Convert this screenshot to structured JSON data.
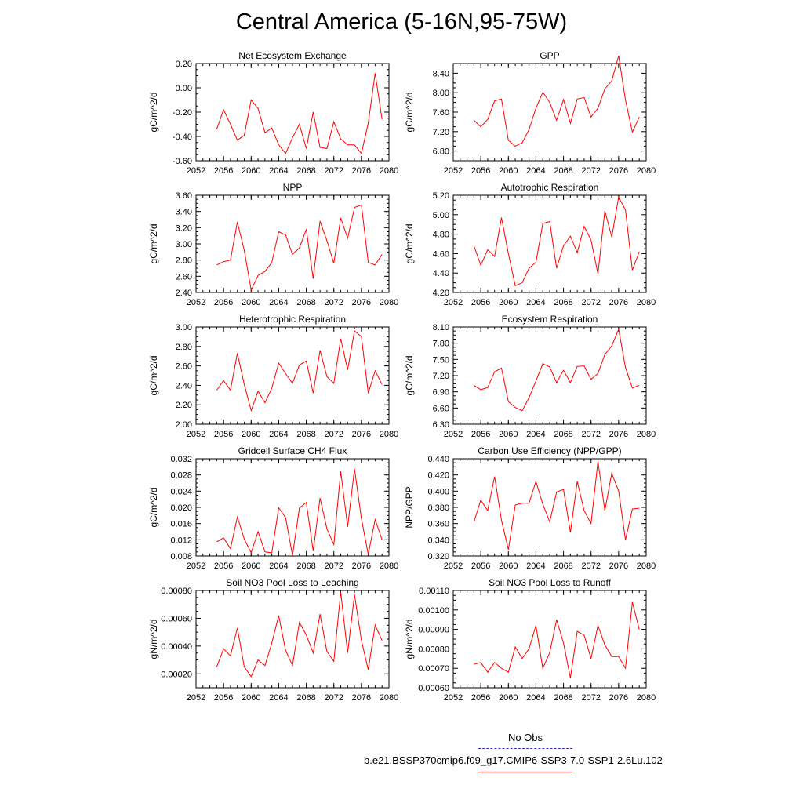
{
  "title": "Central America (5-16N,95-75W)",
  "legend": {
    "no_obs_label": "No Obs",
    "no_obs_color": "#3333cc",
    "run_label": "b.e21.BSSP370cmip6.f09_g17.CMIP6-SSP3-7.0-SSP1-2.6Lu.102",
    "run_color": "#ff0000"
  },
  "chart_data": [
    {
      "type": "line",
      "title": "Net Ecosystem Exchange",
      "ylabel": "gC/m^2/d",
      "xlim": [
        2052,
        2080
      ],
      "xticks": [
        "2052",
        "2056",
        "2060",
        "2064",
        "2068",
        "2072",
        "2076",
        "2080"
      ],
      "ylim": [
        -0.6,
        0.2
      ],
      "yticks": [
        "-0.60",
        "-0.40",
        "-0.20",
        "0.00",
        "0.20"
      ],
      "x": [
        2055,
        2056,
        2057,
        2058,
        2059,
        2060,
        2061,
        2062,
        2063,
        2064,
        2065,
        2066,
        2067,
        2068,
        2069,
        2070,
        2071,
        2072,
        2073,
        2074,
        2075,
        2076,
        2077,
        2078,
        2079
      ],
      "values": [
        -0.34,
        -0.18,
        -0.3,
        -0.43,
        -0.39,
        -0.1,
        -0.17,
        -0.37,
        -0.33,
        -0.47,
        -0.54,
        -0.41,
        -0.3,
        -0.5,
        -0.2,
        -0.49,
        -0.5,
        -0.28,
        -0.42,
        -0.47,
        -0.47,
        -0.54,
        -0.29,
        0.12,
        -0.26
      ]
    },
    {
      "type": "line",
      "title": "GPP",
      "ylabel": "gC/m^2/d",
      "xlim": [
        2052,
        2080
      ],
      "xticks": [
        "2052",
        "2056",
        "2060",
        "2064",
        "2068",
        "2072",
        "2076",
        "2080"
      ],
      "ylim": [
        6.6,
        8.6
      ],
      "yticks": [
        "6.80",
        "7.20",
        "7.60",
        "8.00",
        "8.40"
      ],
      "x": [
        2055,
        2056,
        2057,
        2058,
        2059,
        2060,
        2061,
        2062,
        2063,
        2064,
        2065,
        2066,
        2067,
        2068,
        2069,
        2070,
        2071,
        2072,
        2073,
        2074,
        2075,
        2076,
        2077,
        2078,
        2079
      ],
      "values": [
        7.43,
        7.3,
        7.45,
        7.83,
        7.87,
        7.02,
        6.9,
        6.97,
        7.24,
        7.68,
        8.01,
        7.8,
        7.43,
        7.86,
        7.37,
        7.87,
        7.9,
        7.5,
        7.68,
        8.08,
        8.24,
        8.76,
        7.85,
        7.19,
        7.5
      ]
    },
    {
      "type": "line",
      "title": "NPP",
      "ylabel": "gC/m^2/d",
      "xlim": [
        2052,
        2080
      ],
      "xticks": [
        "2052",
        "2056",
        "2060",
        "2064",
        "2068",
        "2072",
        "2076",
        "2080"
      ],
      "ylim": [
        2.4,
        3.6
      ],
      "yticks": [
        "2.40",
        "2.60",
        "2.80",
        "3.00",
        "3.20",
        "3.40",
        "3.60"
      ],
      "x": [
        2055,
        2056,
        2057,
        2058,
        2059,
        2060,
        2061,
        2062,
        2063,
        2064,
        2065,
        2066,
        2067,
        2068,
        2069,
        2070,
        2071,
        2072,
        2073,
        2074,
        2075,
        2076,
        2077,
        2078,
        2079
      ],
      "values": [
        2.74,
        2.78,
        2.8,
        3.27,
        2.92,
        2.43,
        2.61,
        2.66,
        2.77,
        3.15,
        3.11,
        2.87,
        2.95,
        3.18,
        2.57,
        3.28,
        3.04,
        2.76,
        3.32,
        3.07,
        3.45,
        3.48,
        2.77,
        2.74,
        2.87
      ]
    },
    {
      "type": "line",
      "title": "Autotrophic Respiration",
      "ylabel": "gC/m^2/d",
      "xlim": [
        2052,
        2080
      ],
      "xticks": [
        "2052",
        "2056",
        "2060",
        "2064",
        "2068",
        "2072",
        "2076",
        "2080"
      ],
      "ylim": [
        4.2,
        5.2
      ],
      "yticks": [
        "4.20",
        "4.40",
        "4.60",
        "4.80",
        "5.00",
        "5.20"
      ],
      "x": [
        2055,
        2056,
        2057,
        2058,
        2059,
        2060,
        2061,
        2062,
        2063,
        2064,
        2065,
        2066,
        2067,
        2068,
        2069,
        2070,
        2071,
        2072,
        2073,
        2074,
        2075,
        2076,
        2077,
        2078,
        2079
      ],
      "values": [
        4.68,
        4.48,
        4.64,
        4.57,
        4.97,
        4.6,
        4.27,
        4.3,
        4.45,
        4.51,
        4.91,
        4.93,
        4.45,
        4.68,
        4.78,
        4.61,
        4.88,
        4.74,
        4.39,
        5.04,
        4.77,
        5.18,
        5.05,
        4.43,
        4.62
      ]
    },
    {
      "type": "line",
      "title": "Heterotrophic Respiration",
      "ylabel": "gC/m^2/d",
      "xlim": [
        2052,
        2080
      ],
      "xticks": [
        "2052",
        "2056",
        "2060",
        "2064",
        "2068",
        "2072",
        "2076",
        "2080"
      ],
      "ylim": [
        2.0,
        3.0
      ],
      "yticks": [
        "2.00",
        "2.20",
        "2.40",
        "2.60",
        "2.80",
        "3.00"
      ],
      "x": [
        2055,
        2056,
        2057,
        2058,
        2059,
        2060,
        2061,
        2062,
        2063,
        2064,
        2065,
        2066,
        2067,
        2068,
        2069,
        2070,
        2071,
        2072,
        2073,
        2074,
        2075,
        2076,
        2077,
        2078,
        2079
      ],
      "values": [
        2.35,
        2.45,
        2.35,
        2.73,
        2.41,
        2.14,
        2.34,
        2.22,
        2.37,
        2.63,
        2.52,
        2.42,
        2.61,
        2.65,
        2.32,
        2.76,
        2.49,
        2.42,
        2.88,
        2.56,
        2.96,
        2.9,
        2.32,
        2.55,
        2.41
      ]
    },
    {
      "type": "line",
      "title": "Ecosystem Respiration",
      "ylabel": "gC/m^2/d",
      "xlim": [
        2052,
        2080
      ],
      "xticks": [
        "2052",
        "2056",
        "2060",
        "2064",
        "2068",
        "2072",
        "2076",
        "2080"
      ],
      "ylim": [
        6.3,
        8.1
      ],
      "yticks": [
        "6.30",
        "6.60",
        "6.90",
        "7.20",
        "7.50",
        "7.80",
        "8.10"
      ],
      "x": [
        2055,
        2056,
        2057,
        2058,
        2059,
        2060,
        2061,
        2062,
        2063,
        2064,
        2065,
        2066,
        2067,
        2068,
        2069,
        2070,
        2071,
        2072,
        2073,
        2074,
        2075,
        2076,
        2077,
        2078,
        2079
      ],
      "values": [
        7.02,
        6.94,
        6.98,
        7.27,
        7.34,
        6.72,
        6.61,
        6.55,
        6.79,
        7.1,
        7.42,
        7.36,
        7.07,
        7.3,
        7.07,
        7.37,
        7.38,
        7.13,
        7.24,
        7.59,
        7.75,
        8.06,
        7.35,
        6.97,
        7.02
      ]
    },
    {
      "type": "line",
      "title": "Gridcell Surface CH4 Flux",
      "ylabel": "gC/m^2/d",
      "xlim": [
        2052,
        2080
      ],
      "xticks": [
        "2052",
        "2056",
        "2060",
        "2064",
        "2068",
        "2072",
        "2076",
        "2080"
      ],
      "ylim": [
        0.008,
        0.032
      ],
      "yticks": [
        "0.008",
        "0.012",
        "0.016",
        "0.020",
        "0.024",
        "0.028",
        "0.032"
      ],
      "x": [
        2055,
        2056,
        2057,
        2058,
        2059,
        2060,
        2061,
        2062,
        2063,
        2064,
        2065,
        2066,
        2067,
        2068,
        2069,
        2070,
        2071,
        2072,
        2073,
        2074,
        2075,
        2076,
        2077,
        2078,
        2079
      ],
      "values": [
        0.0115,
        0.0125,
        0.0098,
        0.0176,
        0.0122,
        0.0088,
        0.014,
        0.009,
        0.0088,
        0.0199,
        0.0175,
        0.0081,
        0.0198,
        0.0212,
        0.0092,
        0.0223,
        0.0147,
        0.0108,
        0.0289,
        0.0152,
        0.0295,
        0.0172,
        0.0084,
        0.017,
        0.012
      ]
    },
    {
      "type": "line",
      "title": "Carbon Use Efficiency (NPP/GPP)",
      "ylabel": "NPP/GPP",
      "xlim": [
        2052,
        2080
      ],
      "xticks": [
        "2052",
        "2056",
        "2060",
        "2064",
        "2068",
        "2072",
        "2076",
        "2080"
      ],
      "ylim": [
        0.32,
        0.44
      ],
      "yticks": [
        "0.320",
        "0.340",
        "0.360",
        "0.380",
        "0.400",
        "0.420",
        "0.440"
      ],
      "x": [
        2055,
        2056,
        2057,
        2058,
        2059,
        2060,
        2061,
        2062,
        2063,
        2064,
        2065,
        2066,
        2067,
        2068,
        2069,
        2070,
        2071,
        2072,
        2073,
        2074,
        2075,
        2076,
        2077,
        2078,
        2079
      ],
      "values": [
        0.362,
        0.389,
        0.376,
        0.418,
        0.364,
        0.328,
        0.383,
        0.385,
        0.385,
        0.412,
        0.384,
        0.362,
        0.399,
        0.402,
        0.349,
        0.412,
        0.376,
        0.36,
        0.437,
        0.376,
        0.422,
        0.4,
        0.34,
        0.378,
        0.379
      ]
    },
    {
      "type": "line",
      "title": "Soil NO3 Pool Loss to Leaching",
      "ylabel": "gN/m^2/d",
      "xlim": [
        2052,
        2080
      ],
      "xticks": [
        "2052",
        "2056",
        "2060",
        "2064",
        "2068",
        "2072",
        "2076",
        "2080"
      ],
      "ylim": [
        0.0001,
        0.0008
      ],
      "yticks": [
        "0.00020",
        "0.00040",
        "0.00060",
        "0.00080"
      ],
      "x": [
        2055,
        2056,
        2057,
        2058,
        2059,
        2060,
        2061,
        2062,
        2063,
        2064,
        2065,
        2066,
        2067,
        2068,
        2069,
        2070,
        2071,
        2072,
        2073,
        2074,
        2075,
        2076,
        2077,
        2078,
        2079
      ],
      "values": [
        0.00025,
        0.00038,
        0.00033,
        0.00053,
        0.00025,
        0.00018,
        0.0003,
        0.00026,
        0.00042,
        0.00062,
        0.00037,
        0.00026,
        0.00057,
        0.00048,
        0.00035,
        0.00063,
        0.00036,
        0.00029,
        0.00079,
        0.00035,
        0.00077,
        0.00044,
        0.00023,
        0.00055,
        0.00044
      ]
    },
    {
      "type": "line",
      "title": "Soil NO3 Pool Loss to Runoff",
      "ylabel": "gN/m^2/d",
      "xlim": [
        2052,
        2080
      ],
      "xticks": [
        "2052",
        "2056",
        "2060",
        "2064",
        "2068",
        "2072",
        "2076",
        "2080"
      ],
      "ylim": [
        0.0006,
        0.0011
      ],
      "yticks": [
        "0.00060",
        "0.00070",
        "0.00080",
        "0.00090",
        "0.00100",
        "0.00110"
      ],
      "x": [
        2055,
        2056,
        2057,
        2058,
        2059,
        2060,
        2061,
        2062,
        2063,
        2064,
        2065,
        2066,
        2067,
        2068,
        2069,
        2070,
        2071,
        2072,
        2073,
        2074,
        2075,
        2076,
        2077,
        2078,
        2079
      ],
      "values": [
        0.00072,
        0.00073,
        0.00068,
        0.00073,
        0.0007,
        0.00068,
        0.00081,
        0.00075,
        0.0008,
        0.00092,
        0.0007,
        0.00078,
        0.00095,
        0.00083,
        0.00065,
        0.00089,
        0.00087,
        0.00075,
        0.00092,
        0.00082,
        0.00076,
        0.00076,
        0.0007,
        0.00104,
        0.0009
      ]
    }
  ]
}
